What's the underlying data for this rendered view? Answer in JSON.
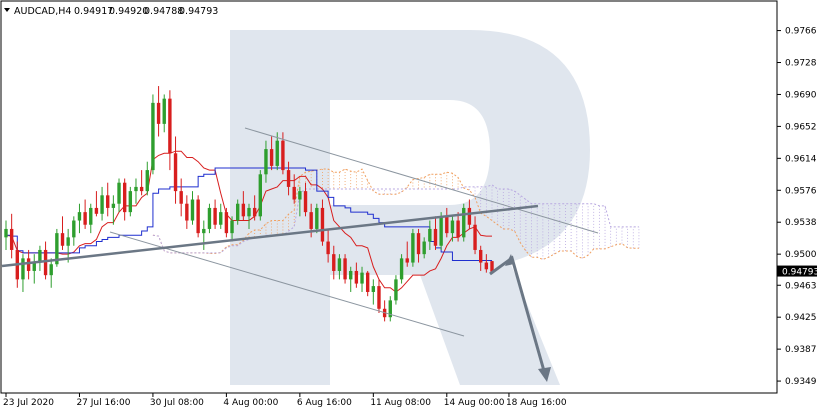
{
  "header": {
    "symbol_label": "AUDCAD,H4",
    "open": "0.94917",
    "high": "0.94920",
    "low": "0.94788",
    "close": "0.94793"
  },
  "price_tag": "0.94793",
  "colors": {
    "bull": "#2e9e2e",
    "bear": "#d81e1e",
    "kijun": "#1f2fcf",
    "tenkan": "#d81e1e",
    "cloud_a": "#f0a060",
    "cloud_b": "#b8a8e0",
    "annotation": "#6b7785",
    "watermark": "#dde3ec"
  },
  "chart_data": {
    "type": "candlestick",
    "symbol": "AUDCAD",
    "timeframe": "H4",
    "y_ticks": [
      "0.97660",
      "0.97280",
      "0.96900",
      "0.96520",
      "0.96140",
      "0.95760",
      "0.95380",
      "0.95000",
      "0.94630",
      "0.94250",
      "0.93870",
      "0.93490"
    ],
    "x_ticks": [
      "23 Jul 2020",
      "27 Jul 16:00",
      "30 Jul 08:00",
      "4 Aug 00:00",
      "6 Aug 16:00",
      "11 Aug 08:00",
      "14 Aug 00:00",
      "18 Aug 16:00"
    ],
    "ylim": [
      0.9336,
      0.98
    ],
    "last_price": 0.94793,
    "candles": [
      [
        0.952,
        0.954,
        0.9505,
        0.953
      ],
      [
        0.953,
        0.9548,
        0.9495,
        0.9505
      ],
      [
        0.9505,
        0.9515,
        0.946,
        0.947
      ],
      [
        0.947,
        0.95,
        0.9455,
        0.9495
      ],
      [
        0.9495,
        0.9505,
        0.947,
        0.948
      ],
      [
        0.948,
        0.95,
        0.9465,
        0.949
      ],
      [
        0.949,
        0.951,
        0.948,
        0.9505
      ],
      [
        0.9505,
        0.9515,
        0.947,
        0.9475
      ],
      [
        0.9475,
        0.9495,
        0.946,
        0.9488
      ],
      [
        0.9488,
        0.953,
        0.9485,
        0.9525
      ],
      [
        0.9525,
        0.9545,
        0.9505,
        0.951
      ],
      [
        0.951,
        0.953,
        0.949,
        0.952
      ],
      [
        0.952,
        0.9545,
        0.951,
        0.954
      ],
      [
        0.954,
        0.956,
        0.9525,
        0.955
      ],
      [
        0.955,
        0.9565,
        0.953,
        0.9535
      ],
      [
        0.9535,
        0.956,
        0.9525,
        0.9555
      ],
      [
        0.9555,
        0.9575,
        0.9545,
        0.9548
      ],
      [
        0.9548,
        0.958,
        0.954,
        0.957
      ],
      [
        0.957,
        0.9585,
        0.9545,
        0.9555
      ],
      [
        0.9555,
        0.957,
        0.9535,
        0.956
      ],
      [
        0.956,
        0.959,
        0.955,
        0.9585
      ],
      [
        0.9585,
        0.959,
        0.954,
        0.955
      ],
      [
        0.955,
        0.958,
        0.9545,
        0.9575
      ],
      [
        0.9575,
        0.959,
        0.956,
        0.958
      ],
      [
        0.958,
        0.96,
        0.957,
        0.9575
      ],
      [
        0.9575,
        0.961,
        0.957,
        0.96
      ],
      [
        0.96,
        0.969,
        0.9595,
        0.968
      ],
      [
        0.968,
        0.97,
        0.964,
        0.9655
      ],
      [
        0.9655,
        0.969,
        0.9645,
        0.9685
      ],
      [
        0.9685,
        0.9695,
        0.96,
        0.962
      ],
      [
        0.962,
        0.964,
        0.956,
        0.9575
      ],
      [
        0.9575,
        0.959,
        0.9545,
        0.956
      ],
      [
        0.956,
        0.957,
        0.953,
        0.954
      ],
      [
        0.954,
        0.9575,
        0.9535,
        0.9565
      ],
      [
        0.9565,
        0.957,
        0.952,
        0.9525
      ],
      [
        0.9525,
        0.954,
        0.9505,
        0.953
      ],
      [
        0.953,
        0.956,
        0.9525,
        0.9555
      ],
      [
        0.9555,
        0.9565,
        0.953,
        0.9535
      ],
      [
        0.9535,
        0.956,
        0.953,
        0.955
      ],
      [
        0.955,
        0.9555,
        0.952,
        0.9525
      ],
      [
        0.9525,
        0.9545,
        0.9515,
        0.954
      ],
      [
        0.954,
        0.9565,
        0.9535,
        0.956
      ],
      [
        0.956,
        0.9575,
        0.954,
        0.9545
      ],
      [
        0.9545,
        0.956,
        0.953,
        0.9555
      ],
      [
        0.9555,
        0.957,
        0.954,
        0.9545
      ],
      [
        0.9545,
        0.96,
        0.954,
        0.9595
      ],
      [
        0.9595,
        0.9635,
        0.9585,
        0.9625
      ],
      [
        0.9625,
        0.964,
        0.96,
        0.9605
      ],
      [
        0.9605,
        0.9645,
        0.96,
        0.9635
      ],
      [
        0.9635,
        0.9645,
        0.9595,
        0.96
      ],
      [
        0.96,
        0.961,
        0.957,
        0.958
      ],
      [
        0.958,
        0.9595,
        0.956,
        0.9565
      ],
      [
        0.9565,
        0.958,
        0.9545,
        0.9575
      ],
      [
        0.9575,
        0.9585,
        0.9545,
        0.955
      ],
      [
        0.955,
        0.956,
        0.952,
        0.953
      ],
      [
        0.953,
        0.956,
        0.9525,
        0.9555
      ],
      [
        0.9555,
        0.9565,
        0.951,
        0.9515
      ],
      [
        0.9515,
        0.953,
        0.949,
        0.95
      ],
      [
        0.95,
        0.951,
        0.947,
        0.948
      ],
      [
        0.948,
        0.95,
        0.947,
        0.9495
      ],
      [
        0.9495,
        0.95,
        0.9465,
        0.947
      ],
      [
        0.947,
        0.9485,
        0.9455,
        0.948
      ],
      [
        0.948,
        0.949,
        0.946,
        0.9465
      ],
      [
        0.9465,
        0.9485,
        0.9455,
        0.9478
      ],
      [
        0.9478,
        0.948,
        0.945,
        0.9455
      ],
      [
        0.9455,
        0.947,
        0.944,
        0.9462
      ],
      [
        0.9462,
        0.947,
        0.943,
        0.9435
      ],
      [
        0.9435,
        0.9445,
        0.942,
        0.9425
      ],
      [
        0.9425,
        0.945,
        0.942,
        0.9445
      ],
      [
        0.9445,
        0.9475,
        0.944,
        0.947
      ],
      [
        0.947,
        0.95,
        0.9465,
        0.9495
      ],
      [
        0.9495,
        0.9515,
        0.9485,
        0.949
      ],
      [
        0.949,
        0.953,
        0.9485,
        0.9525
      ],
      [
        0.9525,
        0.953,
        0.949,
        0.95
      ],
      [
        0.95,
        0.952,
        0.9495,
        0.9515
      ],
      [
        0.9515,
        0.954,
        0.9505,
        0.953
      ],
      [
        0.953,
        0.9545,
        0.9505,
        0.951
      ],
      [
        0.951,
        0.955,
        0.9505,
        0.9545
      ],
      [
        0.9545,
        0.9555,
        0.952,
        0.9525
      ],
      [
        0.9525,
        0.9545,
        0.9515,
        0.954
      ],
      [
        0.954,
        0.955,
        0.9515,
        0.952
      ],
      [
        0.952,
        0.956,
        0.9515,
        0.9555
      ],
      [
        0.9555,
        0.9565,
        0.953,
        0.9535
      ],
      [
        0.9535,
        0.9545,
        0.95,
        0.9505
      ],
      [
        0.9505,
        0.951,
        0.948,
        0.949
      ],
      [
        0.949,
        0.95,
        0.9478,
        0.9482
      ],
      [
        0.94917,
        0.9492,
        0.94788,
        0.94793
      ]
    ]
  }
}
